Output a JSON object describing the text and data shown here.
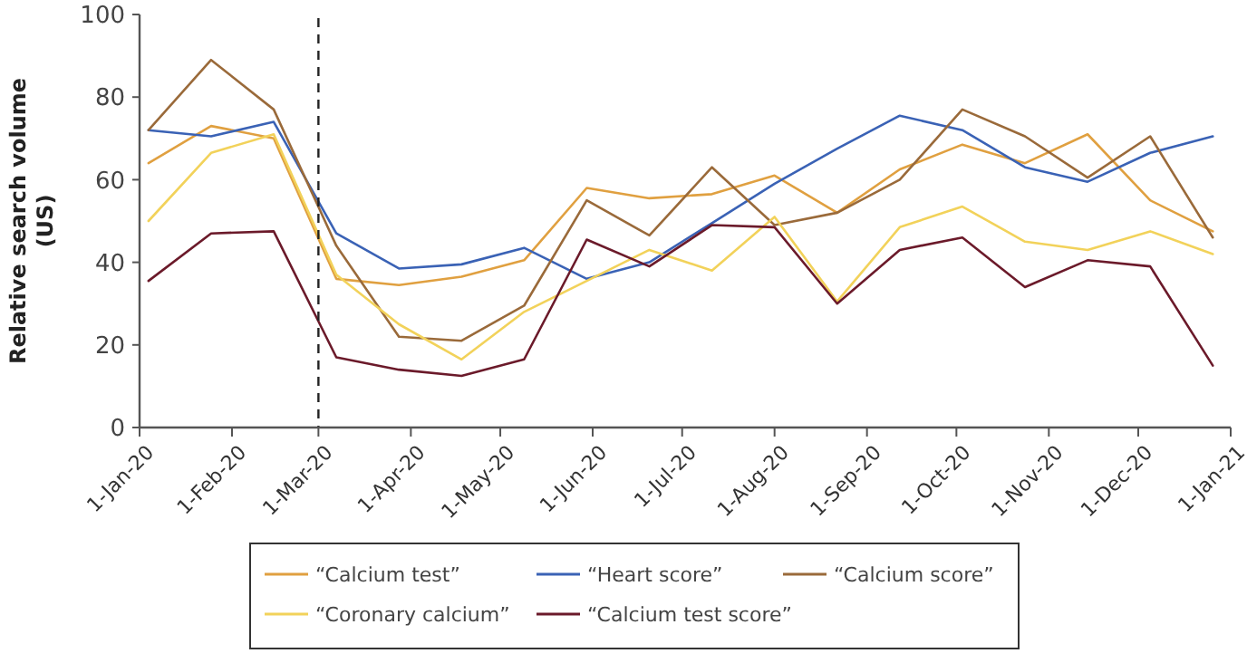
{
  "chart_data": {
    "type": "line",
    "ylabel": "Relative search volume (US)",
    "x": [
      "2020-01-04",
      "2020-01-25",
      "2020-02-15",
      "2020-03-07",
      "2020-03-28",
      "2020-04-18",
      "2020-05-09",
      "2020-05-30",
      "2020-06-20",
      "2020-07-11",
      "2020-08-01",
      "2020-08-22",
      "2020-09-12",
      "2020-10-03",
      "2020-10-24",
      "2020-11-14",
      "2020-12-05",
      "2020-12-26"
    ],
    "series": [
      {
        "name": "“Calcium test”",
        "color": "#e0a040",
        "values": [
          64,
          73,
          70,
          36,
          34.5,
          36.5,
          40.5,
          58,
          55.5,
          56.5,
          61,
          52,
          62.5,
          68.5,
          64,
          71,
          55,
          47.5
        ]
      },
      {
        "name": "“Heart score”",
        "color": "#3a62b5",
        "values": [
          72,
          70.5,
          74,
          47,
          38.5,
          39.5,
          43.5,
          36,
          40,
          49.5,
          59,
          67.5,
          75.5,
          72,
          63,
          59.5,
          66.5,
          70.5
        ]
      },
      {
        "name": "“Calcium score”",
        "color": "#9a6a3a",
        "values": [
          72,
          89,
          77,
          44,
          22,
          21,
          29.5,
          55,
          46.5,
          63,
          49,
          52,
          60,
          77,
          70.5,
          60.5,
          70.5,
          46
        ]
      },
      {
        "name": "“Coronary calcium”",
        "color": "#f2d25a",
        "values": [
          50,
          66.5,
          71,
          37,
          25,
          16.5,
          28,
          35.5,
          43,
          38,
          51,
          30.5,
          48.5,
          53.5,
          45,
          43,
          47.5,
          42
        ]
      },
      {
        "name": "“Calcium test score”",
        "color": "#6b1a2a",
        "values": [
          35.5,
          47,
          47.5,
          17,
          14,
          12.5,
          16.5,
          45.5,
          39,
          49,
          48.5,
          30,
          43,
          46,
          34,
          40.5,
          39,
          15
        ]
      }
    ],
    "xlim": [
      "2020-01-01",
      "2021-01-01"
    ],
    "xticks": [
      {
        "value": "2020-01-01",
        "label": "1-Jan-20"
      },
      {
        "value": "2020-02-01",
        "label": "1-Feb-20"
      },
      {
        "value": "2020-03-01",
        "label": "1-Mar-20"
      },
      {
        "value": "2020-04-01",
        "label": "1-Apr-20"
      },
      {
        "value": "2020-05-01",
        "label": "1-May-20"
      },
      {
        "value": "2020-06-01",
        "label": "1-Jun-20"
      },
      {
        "value": "2020-07-01",
        "label": "1-Jul-20"
      },
      {
        "value": "2020-08-01",
        "label": "1-Aug-20"
      },
      {
        "value": "2020-09-01",
        "label": "1-Sep-20"
      },
      {
        "value": "2020-10-01",
        "label": "1-Oct-20"
      },
      {
        "value": "2020-11-01",
        "label": "1-Nov-20"
      },
      {
        "value": "2020-12-01",
        "label": "1-Dec-20"
      },
      {
        "value": "2021-01-01",
        "label": "1-Jan-21"
      }
    ],
    "ylim": [
      0,
      100
    ],
    "yticks": [
      0,
      20,
      40,
      60,
      80,
      100
    ],
    "ref_lines": [
      {
        "axis": "x",
        "value": "2020-03-01",
        "color": "#222222",
        "line_style": "dashed"
      }
    ],
    "legend": "bottom",
    "grid": false,
    "marker": "none",
    "line_style": "solid"
  }
}
